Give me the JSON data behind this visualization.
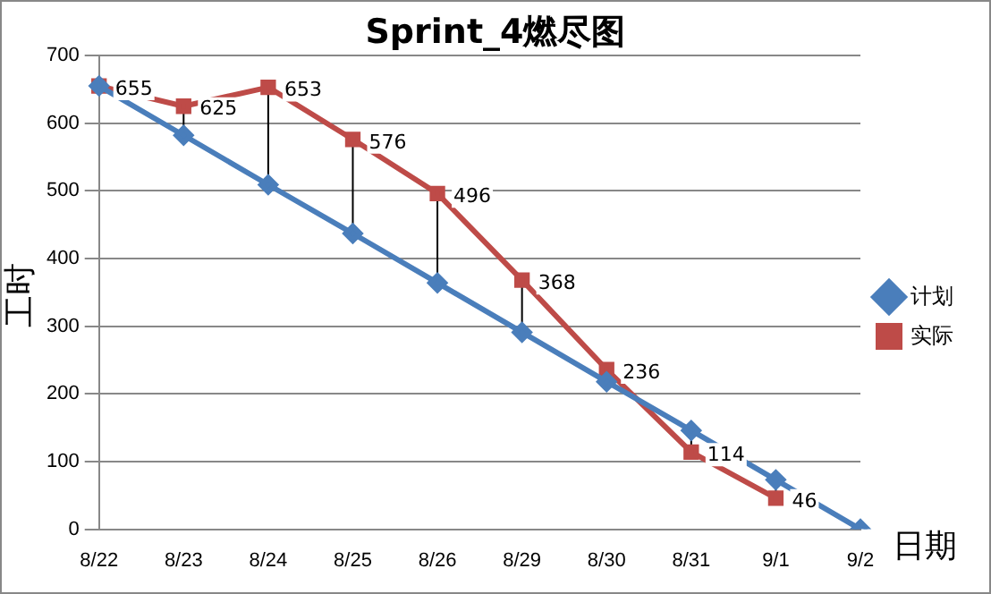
{
  "chart_data": {
    "type": "line",
    "title": "Sprint_4燃尽图",
    "xlabel": "日期",
    "ylabel": "工时",
    "categories": [
      "8/22",
      "8/23",
      "8/24",
      "8/25",
      "8/26",
      "8/29",
      "8/30",
      "8/31",
      "9/1",
      "9/2"
    ],
    "series": [
      {
        "name": "计划",
        "color": "#4a7ebb",
        "marker": "diamond",
        "values": [
          655,
          582,
          509,
          437,
          364,
          291,
          218,
          146,
          73,
          0
        ]
      },
      {
        "name": "实际",
        "color": "#be4b48",
        "marker": "square",
        "values": [
          655,
          625,
          653,
          576,
          496,
          368,
          236,
          114,
          46,
          null
        ],
        "value_labels": [
          "655",
          "625",
          "653",
          "576",
          "496",
          "368",
          "236",
          "114",
          "46",
          null
        ]
      }
    ],
    "ylim": [
      0,
      700
    ],
    "yticks": [
      0,
      100,
      200,
      300,
      400,
      500,
      600,
      700
    ],
    "grid": "y",
    "legend": "right",
    "line_style": "solid"
  }
}
